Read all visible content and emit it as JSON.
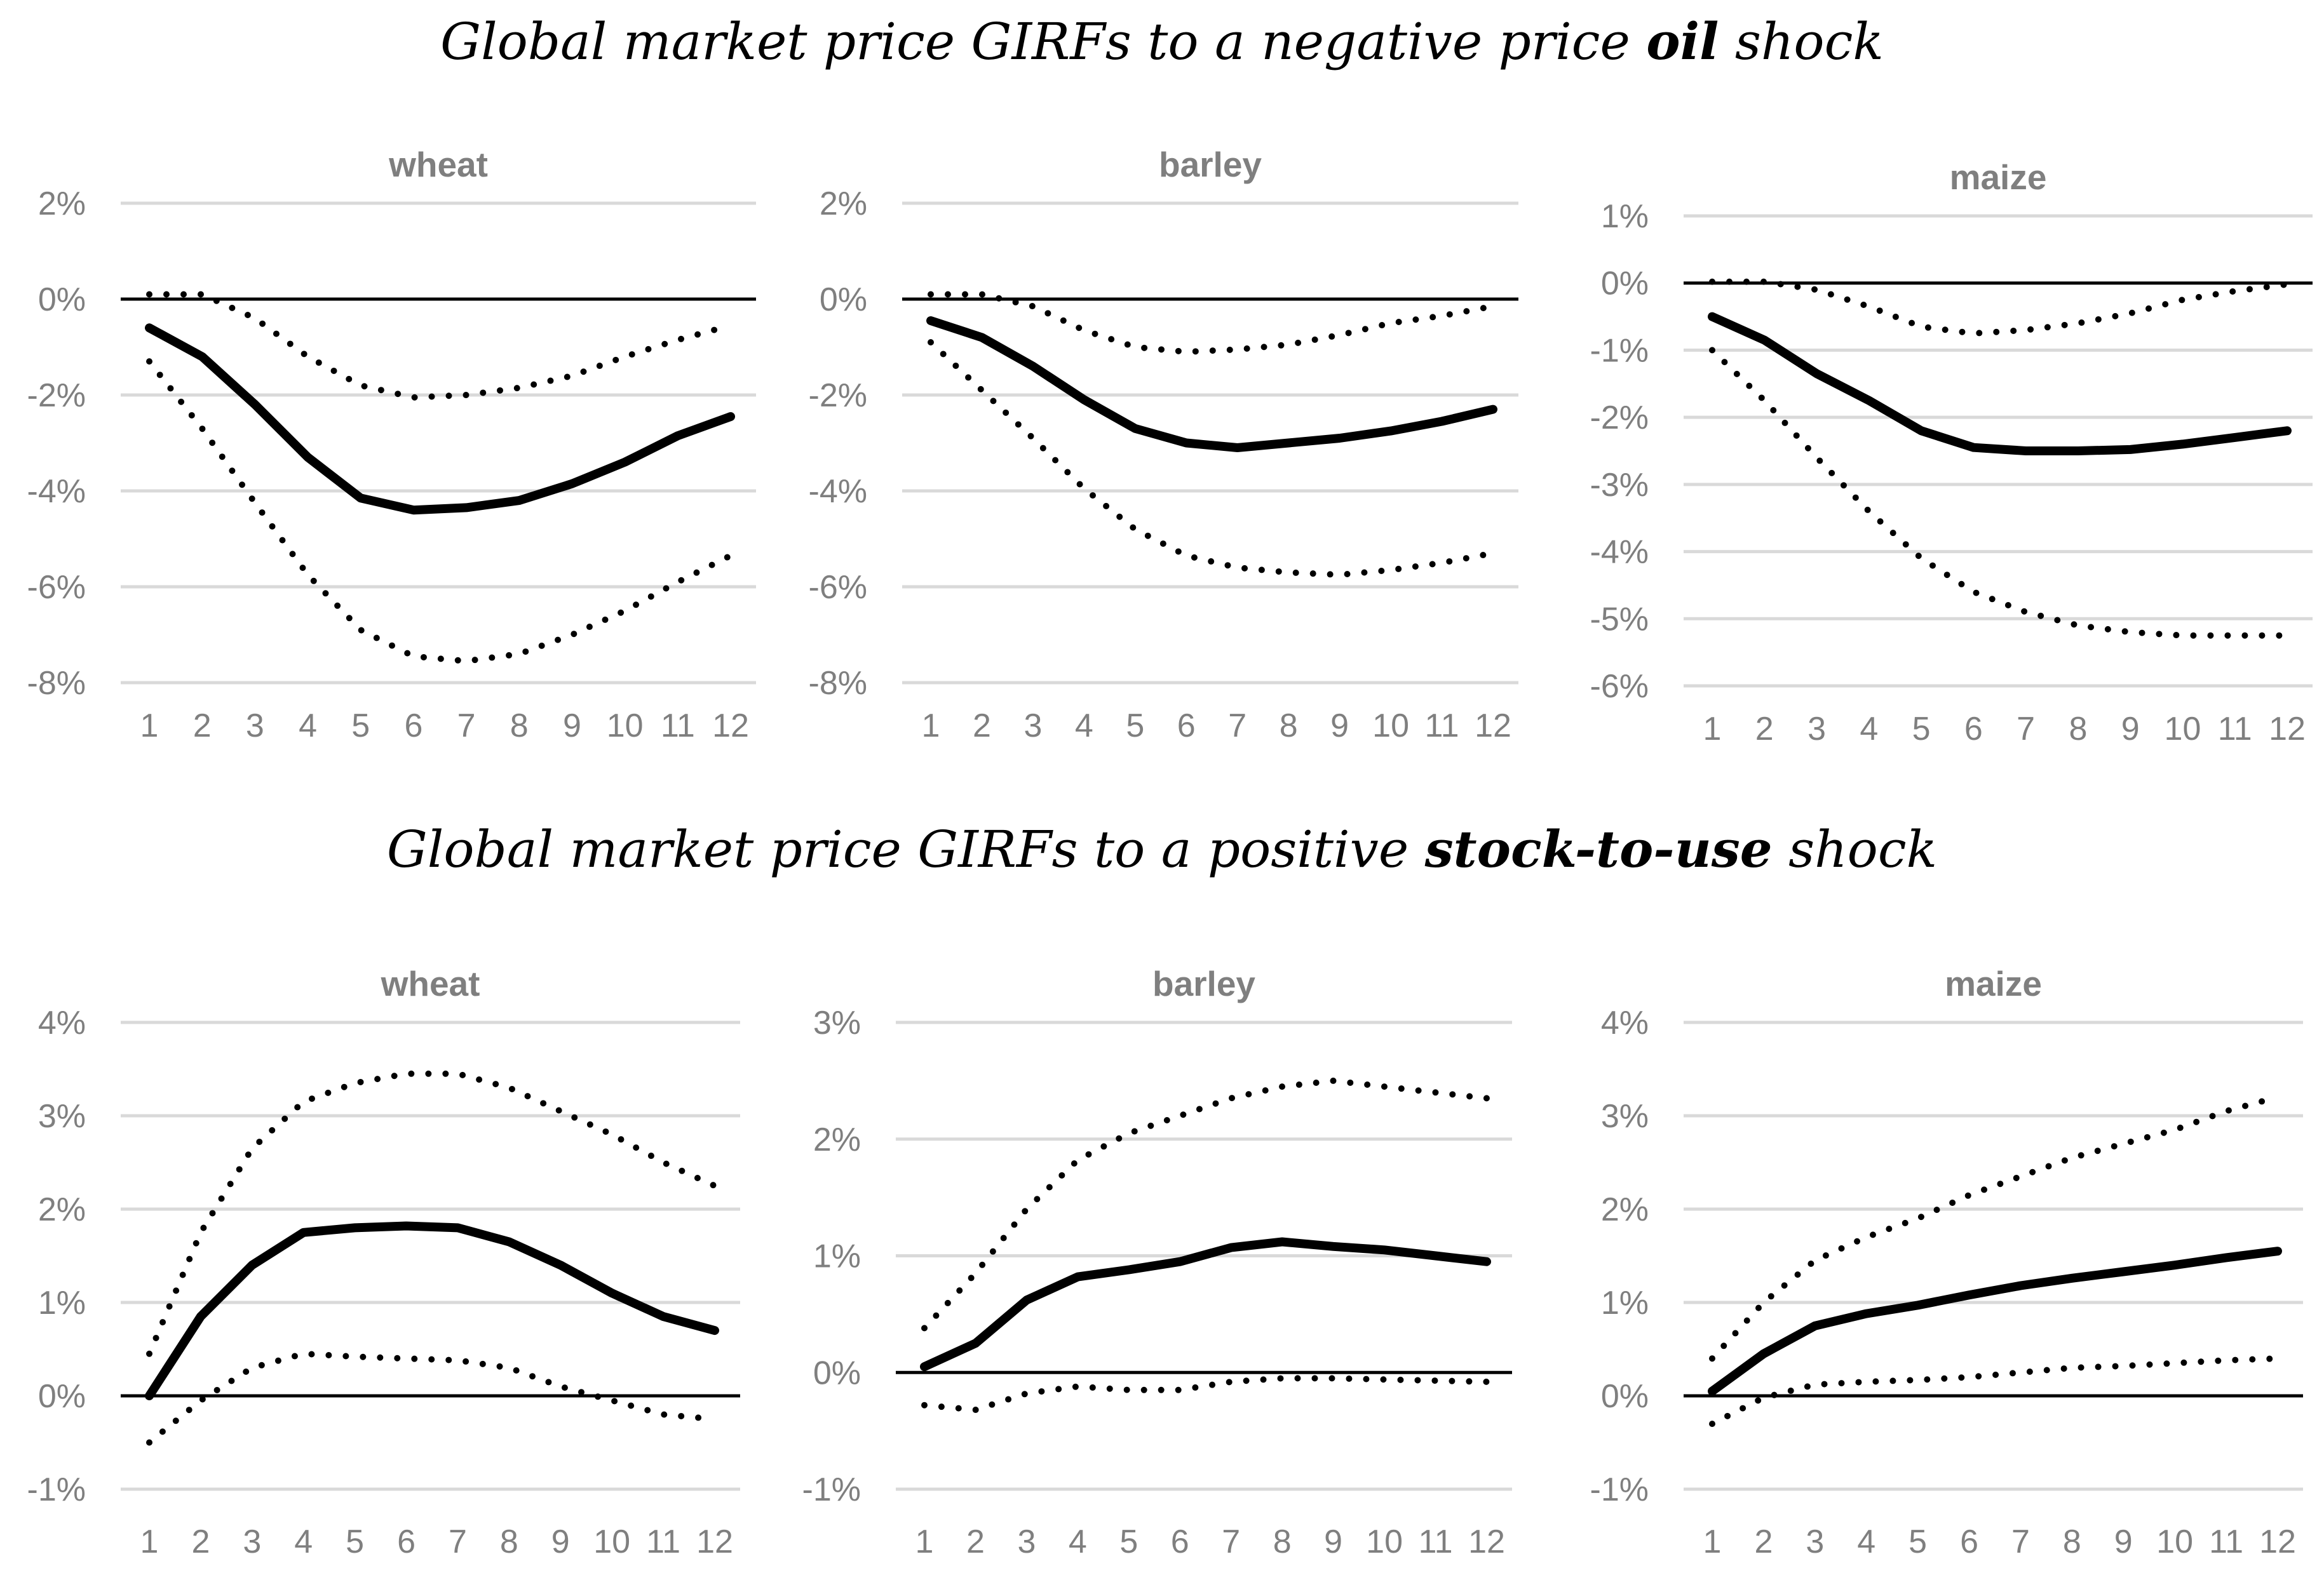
{
  "section_titles": [
    {
      "pre": "Global market price GIRFs to a negative price ",
      "bold": "oil",
      "post": " shock"
    },
    {
      "pre": "Global market price GIRFs to a positive ",
      "bold": "stock-to-use",
      "post": " shock"
    }
  ],
  "colors": {
    "estimate": "#000000",
    "bands": "#000000",
    "gridline": "#d9d9d9",
    "text": "#7f7f7f"
  },
  "chart_data": [
    {
      "type": "line",
      "title": "wheat",
      "group": "oil shock",
      "x": [
        1,
        2,
        3,
        4,
        5,
        6,
        7,
        8,
        9,
        10,
        11,
        12
      ],
      "ylim": [
        -8,
        2
      ],
      "yticks": [
        2,
        0,
        -2,
        -4,
        -6,
        -8
      ],
      "ytick_labels": [
        "2%",
        "0%",
        "-2%",
        "-4%",
        "-6%",
        "-8%"
      ],
      "series": [
        {
          "role": "estimate",
          "style": "solid",
          "values": [
            -0.6,
            -1.2,
            -2.2,
            -3.3,
            -4.15,
            -4.4,
            -4.35,
            -4.2,
            -3.85,
            -3.4,
            -2.85,
            -2.45
          ]
        },
        {
          "role": "upper-band",
          "style": "dotted",
          "values": [
            0.1,
            0.1,
            -0.4,
            -1.2,
            -1.8,
            -2.05,
            -2.0,
            -1.85,
            -1.6,
            -1.2,
            -0.85,
            -0.55
          ]
        },
        {
          "role": "lower-band",
          "style": "dotted",
          "values": [
            -1.3,
            -2.7,
            -4.25,
            -5.75,
            -6.9,
            -7.45,
            -7.55,
            -7.4,
            -7.0,
            -6.5,
            -5.9,
            -5.35
          ]
        }
      ]
    },
    {
      "type": "line",
      "title": "barley",
      "group": "oil shock",
      "x": [
        1,
        2,
        3,
        4,
        5,
        6,
        7,
        8,
        9,
        10,
        11,
        12
      ],
      "ylim": [
        -8,
        2
      ],
      "yticks": [
        2,
        0,
        -2,
        -4,
        -6,
        -8
      ],
      "ytick_labels": [
        "2%",
        "0%",
        "-2%",
        "-4%",
        "-6%",
        "-8%"
      ],
      "series": [
        {
          "role": "estimate",
          "style": "solid",
          "values": [
            -0.45,
            -0.8,
            -1.4,
            -2.1,
            -2.7,
            -3.0,
            -3.1,
            -3.0,
            -2.9,
            -2.75,
            -2.55,
            -2.3
          ]
        },
        {
          "role": "upper-band",
          "style": "dotted",
          "values": [
            0.1,
            0.1,
            -0.15,
            -0.65,
            -1.0,
            -1.1,
            -1.05,
            -0.95,
            -0.75,
            -0.5,
            -0.35,
            -0.15
          ]
        },
        {
          "role": "lower-band",
          "style": "dotted",
          "values": [
            -0.9,
            -1.9,
            -2.9,
            -3.95,
            -4.8,
            -5.35,
            -5.6,
            -5.7,
            -5.75,
            -5.65,
            -5.5,
            -5.3
          ]
        }
      ]
    },
    {
      "type": "line",
      "title": "maize",
      "group": "oil shock",
      "x": [
        1,
        2,
        3,
        4,
        5,
        6,
        7,
        8,
        9,
        10,
        11,
        12
      ],
      "ylim": [
        -6,
        1
      ],
      "yticks": [
        1,
        0,
        -1,
        -2,
        -3,
        -4,
        -5,
        -6
      ],
      "ytick_labels": [
        "1%",
        "0%",
        "-1%",
        "-2%",
        "-3%",
        "-4%",
        "-5%",
        "-6%"
      ],
      "series": [
        {
          "role": "estimate",
          "style": "solid",
          "values": [
            -0.5,
            -0.85,
            -1.35,
            -1.75,
            -2.2,
            -2.45,
            -2.5,
            -2.5,
            -2.48,
            -2.4,
            -2.3,
            -2.2
          ]
        },
        {
          "role": "upper-band",
          "style": "dotted",
          "values": [
            0.02,
            0.02,
            -0.1,
            -0.35,
            -0.65,
            -0.75,
            -0.7,
            -0.6,
            -0.45,
            -0.25,
            -0.12,
            -0.02
          ]
        },
        {
          "role": "lower-band",
          "style": "dotted",
          "values": [
            -1.0,
            -1.75,
            -2.6,
            -3.4,
            -4.1,
            -4.6,
            -4.9,
            -5.1,
            -5.2,
            -5.25,
            -5.25,
            -5.25
          ]
        }
      ]
    },
    {
      "type": "line",
      "title": "wheat",
      "group": "stock-to-use shock",
      "x": [
        1,
        2,
        3,
        4,
        5,
        6,
        7,
        8,
        9,
        10,
        11,
        12
      ],
      "ylim": [
        -1,
        4
      ],
      "yticks": [
        4,
        3,
        2,
        1,
        0,
        -1
      ],
      "ytick_labels": [
        "4%",
        "3%",
        "2%",
        "1%",
        "0%",
        "-1%"
      ],
      "series": [
        {
          "role": "estimate",
          "style": "solid",
          "values": [
            0.0,
            0.85,
            1.4,
            1.75,
            1.8,
            1.82,
            1.8,
            1.65,
            1.4,
            1.1,
            0.85,
            0.7
          ]
        },
        {
          "role": "upper-band",
          "style": "dotted",
          "values": [
            0.45,
            1.75,
            2.65,
            3.15,
            3.35,
            3.45,
            3.45,
            3.3,
            3.05,
            2.8,
            2.5,
            2.25
          ]
        },
        {
          "role": "lower-band",
          "style": "dotted",
          "values": [
            -0.5,
            -0.05,
            0.3,
            0.45,
            0.42,
            0.4,
            0.38,
            0.3,
            0.1,
            -0.05,
            -0.2,
            -0.25
          ]
        }
      ]
    },
    {
      "type": "line",
      "title": "barley",
      "group": "stock-to-use shock",
      "x": [
        1,
        2,
        3,
        4,
        5,
        6,
        7,
        8,
        9,
        10,
        11,
        12
      ],
      "ylim": [
        -1,
        3
      ],
      "yticks": [
        3,
        2,
        1,
        0,
        -1
      ],
      "ytick_labels": [
        "3%",
        "2%",
        "1%",
        "0%",
        "-1%"
      ],
      "series": [
        {
          "role": "estimate",
          "style": "solid",
          "values": [
            0.05,
            0.25,
            0.62,
            0.82,
            0.88,
            0.95,
            1.07,
            1.12,
            1.08,
            1.05,
            1.0,
            0.95
          ]
        },
        {
          "role": "upper-band",
          "style": "dotted",
          "values": [
            0.38,
            0.85,
            1.4,
            1.82,
            2.05,
            2.2,
            2.35,
            2.45,
            2.5,
            2.45,
            2.4,
            2.35
          ]
        },
        {
          "role": "lower-band",
          "style": "dotted",
          "values": [
            -0.28,
            -0.32,
            -0.18,
            -0.12,
            -0.15,
            -0.15,
            -0.08,
            -0.05,
            -0.05,
            -0.06,
            -0.07,
            -0.08
          ]
        }
      ]
    },
    {
      "type": "line",
      "title": "maize",
      "group": "stock-to-use shock",
      "x": [
        1,
        2,
        3,
        4,
        5,
        6,
        7,
        8,
        9,
        10,
        11,
        12
      ],
      "ylim": [
        -1,
        4
      ],
      "yticks": [
        4,
        3,
        2,
        1,
        0,
        -1
      ],
      "ytick_labels": [
        "4%",
        "3%",
        "2%",
        "1%",
        "0%",
        "-1%"
      ],
      "series": [
        {
          "role": "estimate",
          "style": "solid",
          "values": [
            0.05,
            0.45,
            0.75,
            0.88,
            0.97,
            1.08,
            1.18,
            1.26,
            1.33,
            1.4,
            1.48,
            1.55
          ]
        },
        {
          "role": "upper-band",
          "style": "dotted",
          "values": [
            0.4,
            1.0,
            1.45,
            1.7,
            1.9,
            2.15,
            2.35,
            2.55,
            2.7,
            2.85,
            3.05,
            3.2
          ]
        },
        {
          "role": "lower-band",
          "style": "dotted",
          "values": [
            -0.3,
            -0.02,
            0.12,
            0.15,
            0.17,
            0.2,
            0.25,
            0.3,
            0.32,
            0.35,
            0.38,
            0.4
          ]
        }
      ]
    }
  ]
}
